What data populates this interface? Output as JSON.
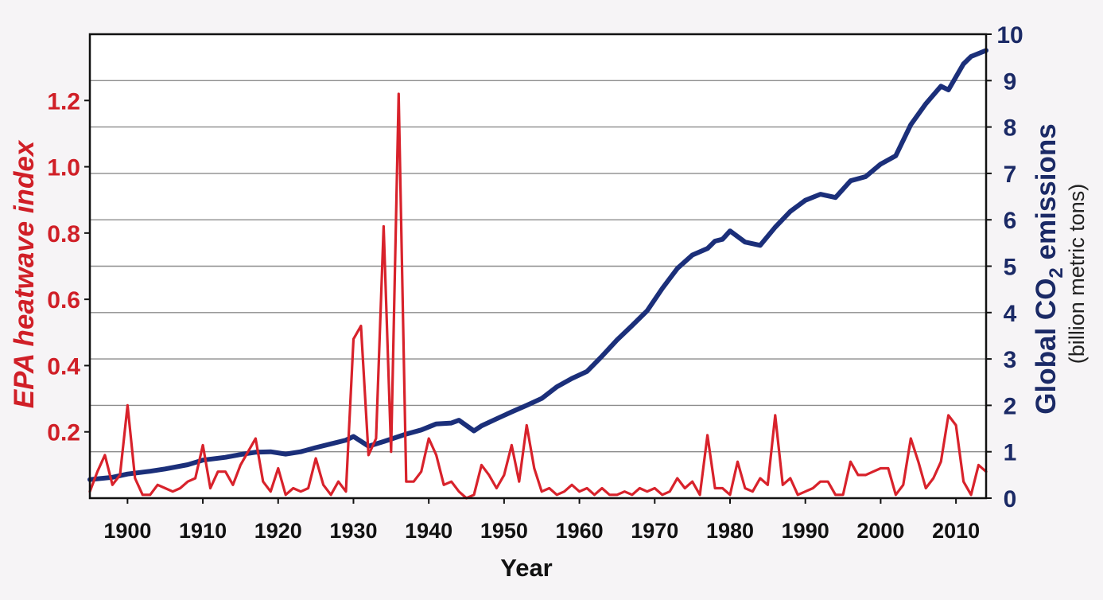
{
  "chart_data": {
    "type": "line",
    "xlabel": "Year",
    "ylabel_left": "EPA heatwave index",
    "ylabel_right": "Global CO2 emissions",
    "ylabel_right_main": "Global CO",
    "ylabel_right_sub": "2",
    "ylabel_right_tail": " emissions",
    "ylabel_right_unit": "(billion metric tons)",
    "xlim": [
      1895,
      2014
    ],
    "ylim_left": [
      0,
      1.4
    ],
    "ylim_right": [
      0,
      10
    ],
    "x_ticks": [
      1900,
      1910,
      1920,
      1930,
      1940,
      1950,
      1960,
      1970,
      1980,
      1990,
      2000,
      2010
    ],
    "x_tick_labels": [
      "1900",
      "1910",
      "1920",
      "1930",
      "1940",
      "1950",
      "1960",
      "1970",
      "1980",
      "1990",
      "2000",
      "2010"
    ],
    "y_left_ticks": [
      0.2,
      0.4,
      0.6,
      0.8,
      1.0,
      1.2
    ],
    "y_left_tick_labels": [
      "0.2",
      "0.4",
      "0.6",
      "0.8",
      "1.0",
      "1.2"
    ],
    "y_right_ticks": [
      0,
      1,
      2,
      3,
      4,
      5,
      6,
      7,
      8,
      9,
      10
    ],
    "y_right_tick_labels": [
      "0",
      "1",
      "2",
      "3",
      "4",
      "5",
      "6",
      "7",
      "8",
      "9",
      "10"
    ],
    "grid": true,
    "colors": {
      "heatwave": "#d8222b",
      "co2": "#1b2f7a",
      "axis": "#111111",
      "grid": "#8c8c8c"
    },
    "series": [
      {
        "axis": "left",
        "x": [
          1895,
          1896,
          1897,
          1898,
          1899,
          1900,
          1901,
          1902,
          1903,
          1904,
          1905,
          1906,
          1907,
          1908,
          1909,
          1910,
          1911,
          1912,
          1913,
          1914,
          1915,
          1916,
          1917,
          1918,
          1919,
          1920,
          1921,
          1922,
          1923,
          1924,
          1925,
          1926,
          1927,
          1928,
          1929,
          1930,
          1931,
          1932,
          1933,
          1934,
          1935,
          1936,
          1937,
          1938,
          1939,
          1940,
          1941,
          1942,
          1943,
          1944,
          1945,
          1946,
          1947,
          1948,
          1949,
          1950,
          1951,
          1952,
          1953,
          1954,
          1955,
          1956,
          1957,
          1958,
          1959,
          1960,
          1961,
          1962,
          1963,
          1964,
          1965,
          1966,
          1967,
          1968,
          1969,
          1970,
          1971,
          1972,
          1973,
          1974,
          1975,
          1976,
          1977,
          1978,
          1979,
          1980,
          1981,
          1982,
          1983,
          1984,
          1985,
          1986,
          1987,
          1988,
          1989,
          1990,
          1991,
          1992,
          1993,
          1994,
          1995,
          1996,
          1997,
          1998,
          1999,
          2000,
          2001,
          2002,
          2003,
          2004,
          2005,
          2006,
          2007,
          2008,
          2009,
          2010,
          2011,
          2012,
          2013,
          2014
        ],
        "values": [
          0.02,
          0.08,
          0.13,
          0.04,
          0.07,
          0.28,
          0.06,
          0.01,
          0.01,
          0.04,
          0.03,
          0.02,
          0.03,
          0.05,
          0.06,
          0.16,
          0.03,
          0.08,
          0.08,
          0.04,
          0.1,
          0.14,
          0.18,
          0.05,
          0.02,
          0.09,
          0.01,
          0.03,
          0.02,
          0.03,
          0.12,
          0.04,
          0.01,
          0.05,
          0.02,
          0.48,
          0.52,
          0.13,
          0.18,
          0.82,
          0.14,
          1.22,
          0.05,
          0.05,
          0.08,
          0.18,
          0.13,
          0.04,
          0.05,
          0.02,
          0.0,
          0.01,
          0.1,
          0.07,
          0.03,
          0.07,
          0.16,
          0.05,
          0.22,
          0.09,
          0.02,
          0.03,
          0.01,
          0.02,
          0.04,
          0.02,
          0.03,
          0.01,
          0.03,
          0.01,
          0.01,
          0.02,
          0.01,
          0.03,
          0.02,
          0.03,
          0.01,
          0.02,
          0.06,
          0.03,
          0.05,
          0.01,
          0.19,
          0.03,
          0.03,
          0.01,
          0.11,
          0.03,
          0.02,
          0.06,
          0.04,
          0.25,
          0.04,
          0.06,
          0.01,
          0.02,
          0.03,
          0.05,
          0.05,
          0.01,
          0.01,
          0.11,
          0.07,
          0.07,
          0.08,
          0.09,
          0.09,
          0.01,
          0.04,
          0.18,
          0.11,
          0.03,
          0.06,
          0.11,
          0.25,
          0.22,
          0.05,
          0.01,
          0.1,
          0.08
        ]
      },
      {
        "axis": "right",
        "x": [
          1895,
          1898,
          1900,
          1903,
          1905,
          1908,
          1910,
          1913,
          1915,
          1917,
          1919,
          1921,
          1923,
          1925,
          1927,
          1929,
          1930,
          1932,
          1934,
          1937,
          1939,
          1941,
          1943,
          1944,
          1946,
          1947,
          1949,
          1951,
          1953,
          1955,
          1957,
          1959,
          1961,
          1963,
          1965,
          1967,
          1969,
          1971,
          1973,
          1975,
          1977,
          1978,
          1979,
          1980,
          1982,
          1984,
          1986,
          1988,
          1990,
          1992,
          1994,
          1996,
          1998,
          2000,
          2002,
          2004,
          2006,
          2008,
          2009,
          2010,
          2011,
          2012,
          2014
        ],
        "values": [
          0.4,
          0.45,
          0.52,
          0.58,
          0.63,
          0.72,
          0.82,
          0.88,
          0.94,
          0.99,
          1.0,
          0.95,
          1.0,
          1.09,
          1.17,
          1.25,
          1.33,
          1.12,
          1.22,
          1.38,
          1.47,
          1.6,
          1.62,
          1.68,
          1.45,
          1.56,
          1.71,
          1.86,
          2.0,
          2.15,
          2.4,
          2.58,
          2.73,
          3.06,
          3.41,
          3.72,
          4.04,
          4.52,
          4.95,
          5.24,
          5.38,
          5.54,
          5.58,
          5.76,
          5.52,
          5.45,
          5.84,
          6.18,
          6.42,
          6.55,
          6.48,
          6.84,
          6.93,
          7.2,
          7.38,
          8.05,
          8.5,
          8.88,
          8.8,
          9.08,
          9.36,
          9.52,
          9.65
        ]
      }
    ]
  }
}
